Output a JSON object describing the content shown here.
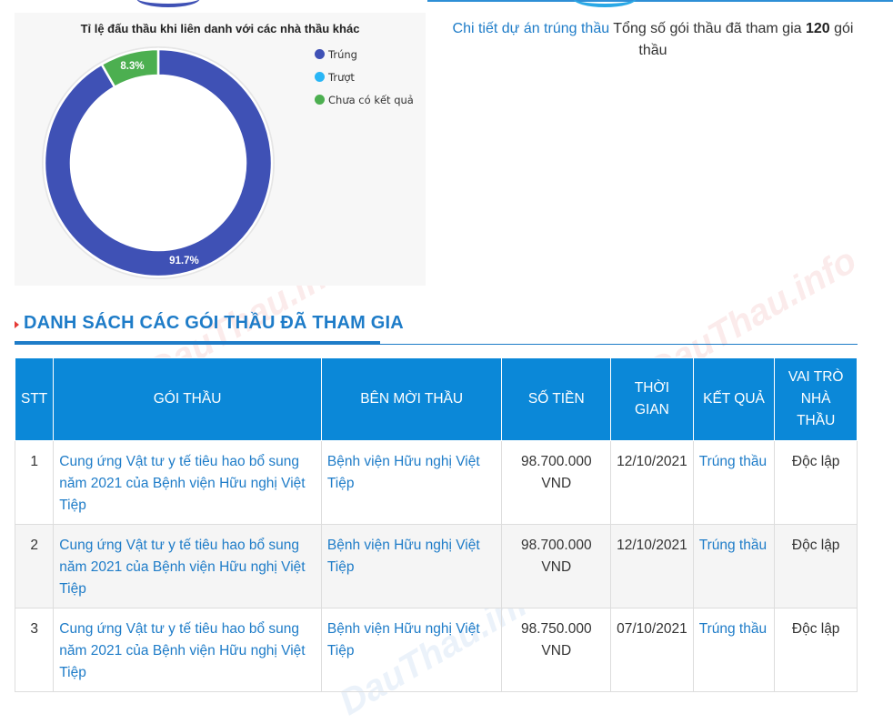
{
  "chart_data": {
    "type": "pie",
    "title": "Tỉ lệ đấu thầu khi liên danh với các nhà thầu khác",
    "series": [
      {
        "name": "Trúng",
        "value": 91.7,
        "label": "91.7%",
        "color": "#3f51b5"
      },
      {
        "name": "Trượt",
        "value": 0,
        "label": "",
        "color": "#29b6f6"
      },
      {
        "name": "Chưa có kết quả",
        "value": 8.3,
        "label": "8.3%",
        "color": "#4caf50"
      }
    ],
    "legend_position": "top-right"
  },
  "summary": {
    "link_text": "Chi tiết dự án trúng thầu",
    "text_before": "Tổng số gói thầu đã tham gia",
    "total": "120",
    "text_after": "gói thầu"
  },
  "section": {
    "title": "DANH SÁCH CÁC GÓI THẦU ĐÃ THAM GIA"
  },
  "watermark": "DauThau.info",
  "table": {
    "headers": {
      "stt": "STT",
      "package": "GÓI THẦU",
      "inviter": "BÊN MỜI THẦU",
      "amount": "SỐ TIỀN",
      "time": "THỜI GIAN",
      "result": "KẾT QUẢ",
      "role": "VAI TRÒ NHÀ THẦU"
    },
    "rows": [
      {
        "stt": "1",
        "package": "Cung ứng Vật tư y tế tiêu hao bổ sung năm 2021 của Bệnh viện Hữu nghị Việt Tiệp",
        "inviter": "Bệnh viện Hữu nghị Việt Tiệp",
        "amount": "98.700.000 VND",
        "time": "12/10/2021",
        "result": "Trúng thầu",
        "role": "Độc lập"
      },
      {
        "stt": "2",
        "package": "Cung ứng Vật tư y tế tiêu hao bổ sung năm 2021 của Bệnh viện Hữu nghị Việt Tiệp",
        "inviter": "Bệnh viện Hữu nghị Việt Tiệp",
        "amount": "98.700.000 VND",
        "time": "12/10/2021",
        "result": "Trúng thầu",
        "role": "Độc lập"
      },
      {
        "stt": "3",
        "package": "Cung ứng Vật tư y tế tiêu hao bổ sung năm 2021 của Bệnh viện Hữu nghị Việt Tiệp",
        "inviter": "Bệnh viện Hữu nghị Việt Tiệp",
        "amount": "98.750.000 VND",
        "time": "07/10/2021",
        "result": "Trúng thầu",
        "role": "Độc lập"
      }
    ]
  }
}
